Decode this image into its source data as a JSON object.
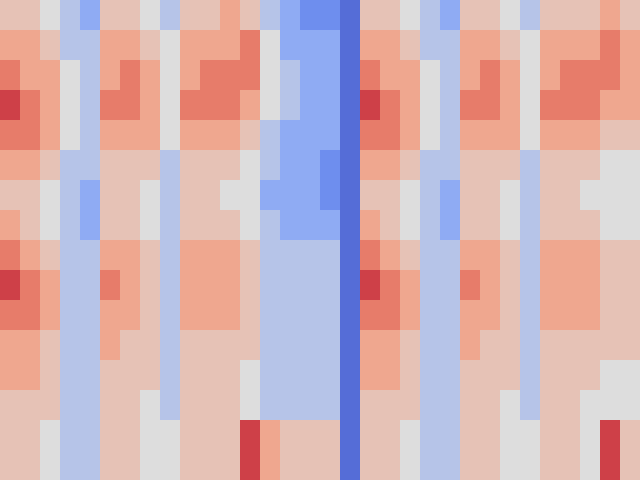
{
  "chart_data": {
    "type": "heatmap",
    "tick_labels": false,
    "clim": [
      0,
      10
    ],
    "cells": [
      [
        6,
        6,
        5,
        4,
        3,
        6,
        6,
        5,
        4,
        6,
        6,
        7,
        6,
        4,
        3,
        2,
        2,
        1,
        6,
        6,
        5,
        4,
        3,
        6,
        6,
        5,
        4,
        6,
        6,
        6,
        7,
        6
      ],
      [
        7,
        7,
        6,
        4,
        4,
        7,
        7,
        6,
        5,
        7,
        7,
        7,
        8,
        5,
        3,
        3,
        3,
        1,
        7,
        7,
        6,
        4,
        4,
        7,
        7,
        6,
        5,
        7,
        7,
        7,
        8,
        7
      ],
      [
        8,
        7,
        7,
        5,
        4,
        7,
        8,
        7,
        5,
        7,
        8,
        8,
        8,
        5,
        4,
        3,
        3,
        1,
        8,
        7,
        7,
        5,
        4,
        7,
        8,
        7,
        5,
        7,
        8,
        8,
        8,
        7
      ],
      [
        9,
        8,
        7,
        5,
        4,
        8,
        8,
        7,
        5,
        8,
        8,
        8,
        7,
        5,
        4,
        3,
        3,
        1,
        9,
        8,
        7,
        5,
        4,
        8,
        8,
        7,
        5,
        8,
        8,
        8,
        7,
        7
      ],
      [
        8,
        8,
        7,
        5,
        4,
        7,
        7,
        7,
        5,
        7,
        7,
        7,
        6,
        4,
        3,
        3,
        3,
        1,
        8,
        8,
        7,
        5,
        4,
        7,
        7,
        7,
        5,
        7,
        7,
        7,
        6,
        6
      ],
      [
        7,
        7,
        6,
        4,
        4,
        6,
        6,
        6,
        4,
        6,
        6,
        6,
        5,
        4,
        3,
        3,
        2,
        1,
        7,
        7,
        6,
        4,
        4,
        6,
        6,
        6,
        4,
        6,
        6,
        6,
        5,
        5
      ],
      [
        6,
        6,
        5,
        4,
        3,
        6,
        6,
        5,
        4,
        6,
        6,
        5,
        5,
        3,
        3,
        3,
        2,
        1,
        6,
        6,
        5,
        4,
        3,
        6,
        6,
        5,
        4,
        6,
        6,
        5,
        5,
        5
      ],
      [
        7,
        6,
        5,
        4,
        3,
        6,
        6,
        5,
        4,
        6,
        6,
        6,
        5,
        4,
        3,
        3,
        3,
        1,
        7,
        6,
        5,
        4,
        3,
        6,
        6,
        5,
        4,
        6,
        6,
        6,
        5,
        5
      ],
      [
        8,
        7,
        6,
        4,
        4,
        7,
        7,
        6,
        4,
        7,
        7,
        7,
        6,
        4,
        4,
        4,
        4,
        1,
        8,
        7,
        6,
        4,
        4,
        7,
        7,
        6,
        4,
        7,
        7,
        7,
        6,
        6
      ],
      [
        9,
        8,
        7,
        4,
        4,
        8,
        7,
        6,
        4,
        7,
        7,
        7,
        6,
        4,
        4,
        4,
        4,
        1,
        9,
        8,
        7,
        4,
        4,
        8,
        7,
        6,
        4,
        7,
        7,
        7,
        6,
        6
      ],
      [
        8,
        8,
        7,
        4,
        4,
        7,
        7,
        6,
        4,
        7,
        7,
        7,
        6,
        4,
        4,
        4,
        4,
        1,
        8,
        8,
        7,
        4,
        4,
        7,
        7,
        6,
        4,
        7,
        7,
        7,
        6,
        6
      ],
      [
        7,
        7,
        6,
        4,
        4,
        7,
        6,
        6,
        4,
        6,
        6,
        6,
        6,
        4,
        4,
        4,
        4,
        1,
        7,
        7,
        6,
        4,
        4,
        7,
        6,
        6,
        4,
        6,
        6,
        6,
        6,
        6
      ],
      [
        7,
        7,
        6,
        4,
        4,
        6,
        6,
        6,
        4,
        6,
        6,
        6,
        5,
        4,
        4,
        4,
        4,
        1,
        7,
        7,
        6,
        4,
        4,
        6,
        6,
        6,
        4,
        6,
        6,
        6,
        5,
        5
      ],
      [
        6,
        6,
        6,
        4,
        4,
        6,
        6,
        5,
        4,
        6,
        6,
        6,
        5,
        4,
        4,
        4,
        4,
        1,
        6,
        6,
        6,
        4,
        4,
        6,
        6,
        5,
        4,
        6,
        6,
        5,
        5,
        5
      ],
      [
        6,
        6,
        5,
        4,
        4,
        6,
        6,
        5,
        5,
        6,
        6,
        6,
        9,
        7,
        6,
        6,
        6,
        1,
        6,
        6,
        5,
        4,
        4,
        6,
        6,
        5,
        5,
        6,
        6,
        5,
        9,
        6
      ],
      [
        6,
        6,
        5,
        4,
        4,
        6,
        6,
        5,
        5,
        6,
        6,
        6,
        9,
        7,
        6,
        6,
        6,
        1,
        6,
        6,
        5,
        4,
        4,
        6,
        6,
        5,
        5,
        6,
        6,
        5,
        9,
        6
      ]
    ]
  }
}
